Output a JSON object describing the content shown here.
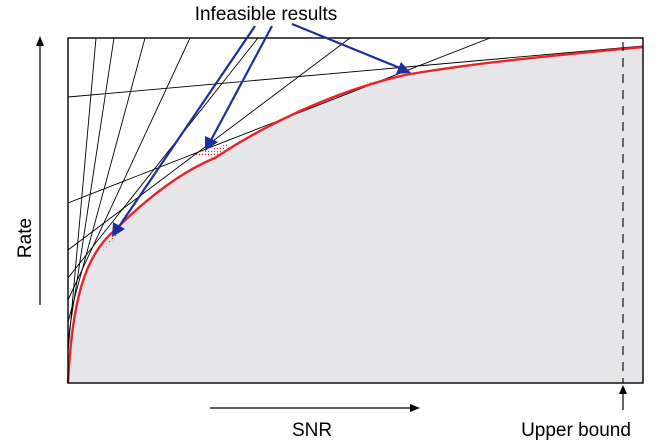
{
  "diagram": {
    "title_annotation": "Infeasible results",
    "x_label": "SNR",
    "y_label": "Rate",
    "bound_label": "Upper bound",
    "colors": {
      "curve": "#e8242a",
      "feasible_fill": "#e6e6e8",
      "infeasible_dots": "#e8242a",
      "annotation_arrows": "#1f2f9a",
      "tangent_lines": "#000000"
    }
  }
}
